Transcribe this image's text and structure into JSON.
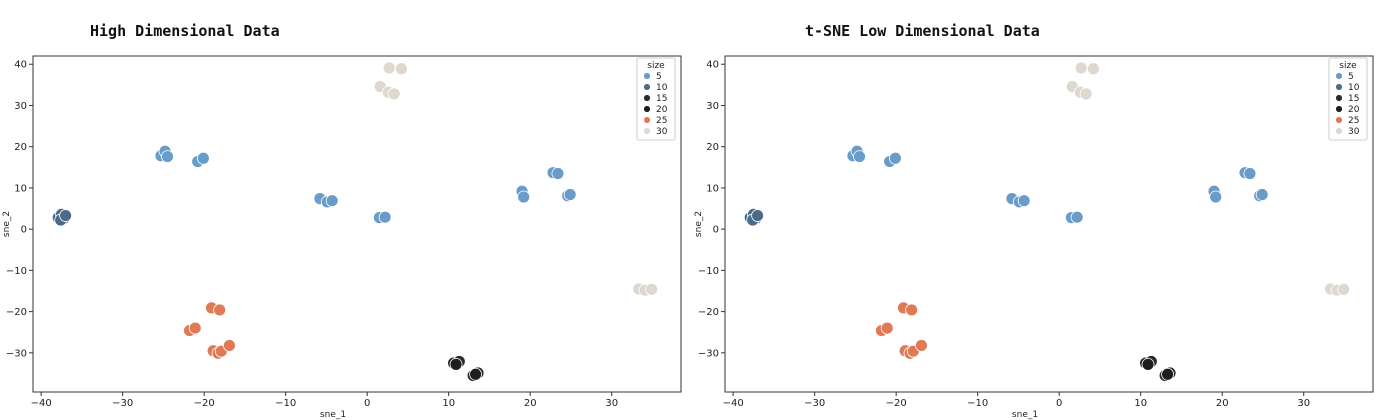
{
  "chart_data": [
    {
      "type": "scatter",
      "title": "High Dimensional Data",
      "xlabel": "sne_1",
      "ylabel": "sne_2",
      "xlim": [
        -41,
        38.5
      ],
      "ylim": [
        -39.5,
        42
      ],
      "xticks": [
        -40,
        -30,
        -20,
        -10,
        0,
        10,
        20,
        30
      ],
      "yticks": [
        -30,
        -20,
        -10,
        0,
        10,
        20,
        30,
        40
      ],
      "legend": {
        "title": "size",
        "position": "top-right"
      },
      "series": [
        {
          "name": "5",
          "color": "#6a9cc9",
          "points": [
            [
              -25.3,
              17.8
            ],
            [
              -24.8,
              18.9
            ],
            [
              -24.5,
              17.6
            ],
            [
              -20.8,
              16.4
            ],
            [
              -20.1,
              17.2
            ],
            [
              -5.8,
              7.4
            ],
            [
              -4.9,
              6.6
            ],
            [
              -4.3,
              6.9
            ],
            [
              1.5,
              2.8
            ],
            [
              2.2,
              2.9
            ],
            [
              19.0,
              9.2
            ],
            [
              19.2,
              7.8
            ],
            [
              22.8,
              13.7
            ],
            [
              23.4,
              13.5
            ],
            [
              24.6,
              8.1
            ],
            [
              24.9,
              8.4
            ]
          ]
        },
        {
          "name": "10",
          "color": "#4a6c88",
          "points": [
            [
              -37.9,
              2.8
            ],
            [
              -37.5,
              3.6
            ],
            [
              -37.2,
              2.6
            ],
            [
              -37.6,
              2.2
            ],
            [
              -37.0,
              3.3
            ]
          ]
        },
        {
          "name": "15",
          "color": "#2a2a2a",
          "points": [
            [
              10.6,
              -32.5
            ],
            [
              11.3,
              -32.1
            ],
            [
              13.0,
              -35.5
            ],
            [
              13.6,
              -34.9
            ]
          ]
        },
        {
          "name": "20",
          "color": "#1e1e1e",
          "points": [
            [
              10.9,
              -32.8
            ],
            [
              13.3,
              -35.2
            ]
          ]
        },
        {
          "name": "25",
          "color": "#e07a56",
          "points": [
            [
              -21.8,
              -24.6
            ],
            [
              -21.1,
              -24.0
            ],
            [
              -19.1,
              -19.1
            ],
            [
              -18.1,
              -19.6
            ],
            [
              -18.9,
              -29.5
            ],
            [
              -18.3,
              -30.1
            ],
            [
              -17.9,
              -29.6
            ],
            [
              -16.9,
              -28.2
            ]
          ]
        },
        {
          "name": "30",
          "color": "#ded8cf",
          "points": [
            [
              2.7,
              39.1
            ],
            [
              4.2,
              38.9
            ],
            [
              1.6,
              34.6
            ],
            [
              2.6,
              33.2
            ],
            [
              3.3,
              32.8
            ],
            [
              33.3,
              -14.5
            ],
            [
              34.1,
              -14.8
            ],
            [
              34.9,
              -14.6
            ]
          ]
        }
      ]
    },
    {
      "type": "scatter",
      "title": "t-SNE Low Dimensional Data",
      "xlabel": "sne_1",
      "ylabel": "sne_2",
      "xlim": [
        -41,
        38.5
      ],
      "ylim": [
        -39.5,
        42
      ],
      "xticks": [
        -40,
        -30,
        -20,
        -10,
        0,
        10,
        20,
        30
      ],
      "yticks": [
        -30,
        -20,
        -10,
        0,
        10,
        20,
        30,
        40
      ],
      "legend": {
        "title": "size",
        "position": "top-right"
      },
      "series": [
        {
          "name": "5",
          "color": "#6a9cc9",
          "points": [
            [
              -25.3,
              17.8
            ],
            [
              -24.8,
              18.9
            ],
            [
              -24.5,
              17.6
            ],
            [
              -20.8,
              16.4
            ],
            [
              -20.1,
              17.2
            ],
            [
              -5.8,
              7.4
            ],
            [
              -4.9,
              6.6
            ],
            [
              -4.3,
              6.9
            ],
            [
              1.5,
              2.8
            ],
            [
              2.2,
              2.9
            ],
            [
              19.0,
              9.2
            ],
            [
              19.2,
              7.8
            ],
            [
              22.8,
              13.7
            ],
            [
              23.4,
              13.5
            ],
            [
              24.6,
              8.1
            ],
            [
              24.9,
              8.4
            ]
          ]
        },
        {
          "name": "10",
          "color": "#4a6c88",
          "points": [
            [
              -37.9,
              2.8
            ],
            [
              -37.5,
              3.6
            ],
            [
              -37.2,
              2.6
            ],
            [
              -37.6,
              2.2
            ],
            [
              -37.0,
              3.3
            ]
          ]
        },
        {
          "name": "15",
          "color": "#2a2a2a",
          "points": [
            [
              10.6,
              -32.5
            ],
            [
              11.3,
              -32.1
            ],
            [
              13.0,
              -35.5
            ],
            [
              13.6,
              -34.9
            ]
          ]
        },
        {
          "name": "20",
          "color": "#1e1e1e",
          "points": [
            [
              10.9,
              -32.8
            ],
            [
              13.3,
              -35.2
            ]
          ]
        },
        {
          "name": "25",
          "color": "#e07a56",
          "points": [
            [
              -21.8,
              -24.6
            ],
            [
              -21.1,
              -24.0
            ],
            [
              -19.1,
              -19.1
            ],
            [
              -18.1,
              -19.6
            ],
            [
              -18.9,
              -29.5
            ],
            [
              -18.3,
              -30.1
            ],
            [
              -17.9,
              -29.6
            ],
            [
              -16.9,
              -28.2
            ]
          ]
        },
        {
          "name": "30",
          "color": "#ded8cf",
          "points": [
            [
              2.7,
              39.1
            ],
            [
              4.2,
              38.9
            ],
            [
              1.6,
              34.6
            ],
            [
              2.6,
              33.2
            ],
            [
              3.3,
              32.8
            ],
            [
              33.3,
              -14.5
            ],
            [
              34.1,
              -14.8
            ],
            [
              34.9,
              -14.6
            ]
          ]
        }
      ]
    }
  ]
}
